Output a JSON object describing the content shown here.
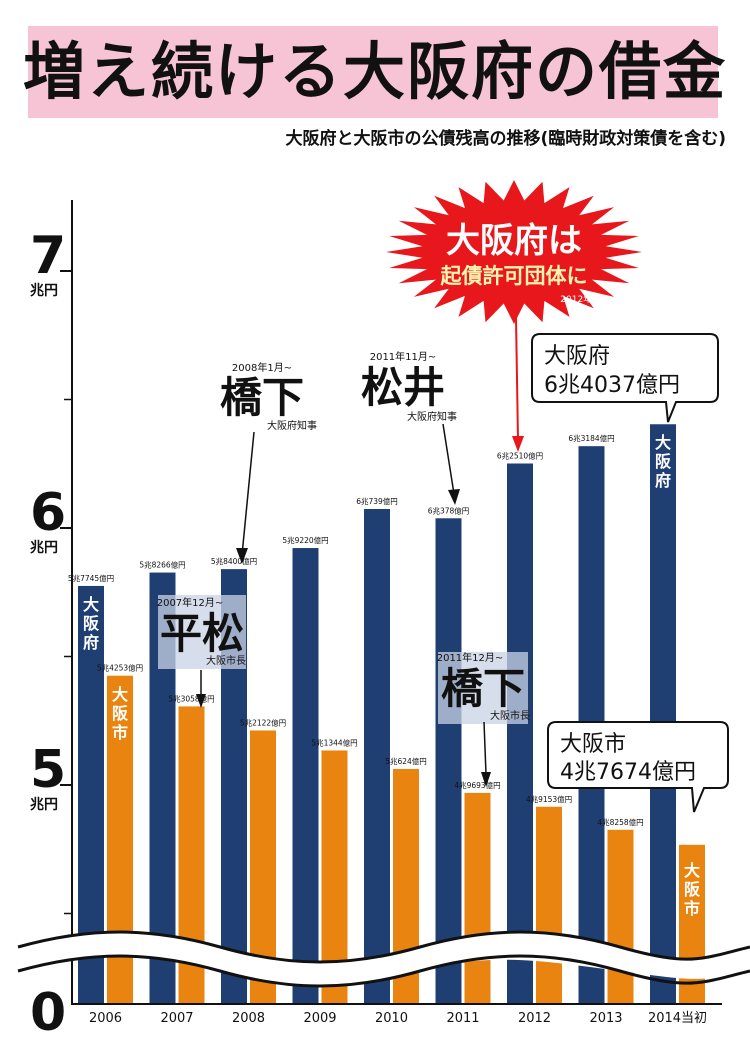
{
  "title": "増え続ける大阪府の借金",
  "subtitle": "大阪府と大阪市の公債残高の推移(臨時財政対策債を含む)",
  "colors": {
    "fu": "#1f3f73",
    "shi": "#ea8411",
    "band": "#f7c4d6",
    "burst": "#e8171b"
  },
  "chart_data": {
    "type": "bar",
    "categories": [
      "2006",
      "2007",
      "2008",
      "2009",
      "2010",
      "2011",
      "2012",
      "2013",
      "2014当初"
    ],
    "unit": "兆円",
    "ytick_labels": [
      "7",
      "6",
      "5",
      "0"
    ],
    "ytick_values": [
      7,
      6,
      5,
      0
    ],
    "axis_break": true,
    "series": [
      {
        "name": "大阪府",
        "values": [
          5.7745,
          5.8266,
          5.84,
          5.922,
          6.0739,
          6.0378,
          6.251,
          6.3184,
          6.4037
        ],
        "labels": [
          "5兆7745億円",
          "5兆8266億円",
          "5兆8400億円",
          "5兆9220億円",
          "6兆739億円",
          "6兆378億円",
          "6兆2510億円",
          "6兆3184億円",
          ""
        ]
      },
      {
        "name": "大阪市",
        "values": [
          5.4253,
          5.3058,
          5.2122,
          5.1344,
          5.0624,
          4.9693,
          4.9153,
          4.8258,
          4.7674
        ],
        "labels": [
          "5兆4253億円",
          "5兆3058億円",
          "5兆2122億円",
          "5兆1344億円",
          "5兆624億円",
          "4兆9693億円",
          "4兆9153億円",
          "4兆8258億円",
          ""
        ]
      }
    ],
    "annotations": [
      {
        "date": "2008年1月~",
        "name": "橋下",
        "role": "大阪府知事"
      },
      {
        "date": "2011年11月~",
        "name": "松井",
        "role": "大阪府知事"
      },
      {
        "date": "2007年12月~",
        "name": "平松",
        "role": "大阪市長"
      },
      {
        "date": "2011年12月~",
        "name": "橋下",
        "role": "大阪市長"
      }
    ],
    "callouts": {
      "fu": {
        "name": "大阪府",
        "value": "6兆4037億円"
      },
      "shi": {
        "name": "大阪市",
        "value": "4兆7674億円"
      }
    },
    "burst": {
      "line1": "大阪府は",
      "line2": "起債許可団体に",
      "note": "2012年~"
    }
  }
}
